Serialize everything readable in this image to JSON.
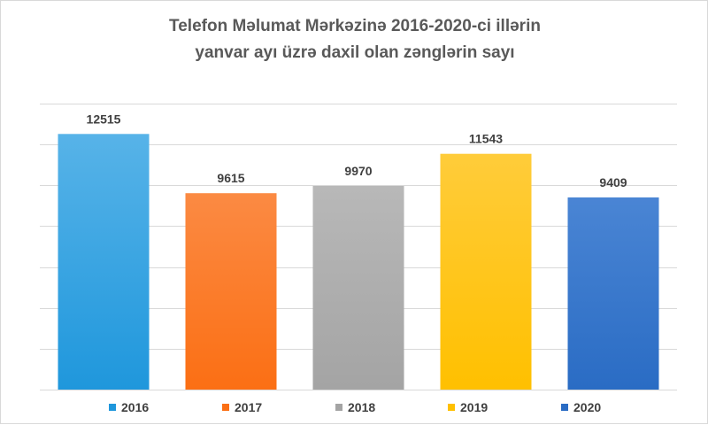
{
  "chart_data": {
    "type": "bar",
    "title_lines": [
      "Telefon Məlumat Mərkəzinə 2016-2020-ci illərin",
      "yanvar ayı üzrə daxil olan zənglərin sayı"
    ],
    "categories": [
      "2016",
      "2017",
      "2018",
      "2019",
      "2020"
    ],
    "values": [
      12515,
      9615,
      9970,
      11543,
      9409
    ],
    "colors": [
      "#1f97dc",
      "#fb6f14",
      "#a4a4a4",
      "#ffc000",
      "#2a6cc4"
    ],
    "gradient_tops": [
      "#57b3e8",
      "#fb8a43",
      "#b8b8b8",
      "#ffcc3a",
      "#4a85d4"
    ],
    "ylim": [
      0,
      15000
    ],
    "gridlines": true,
    "legend": {
      "position": "bottom",
      "items": [
        "2016",
        "2017",
        "2018",
        "2019",
        "2020"
      ]
    }
  }
}
